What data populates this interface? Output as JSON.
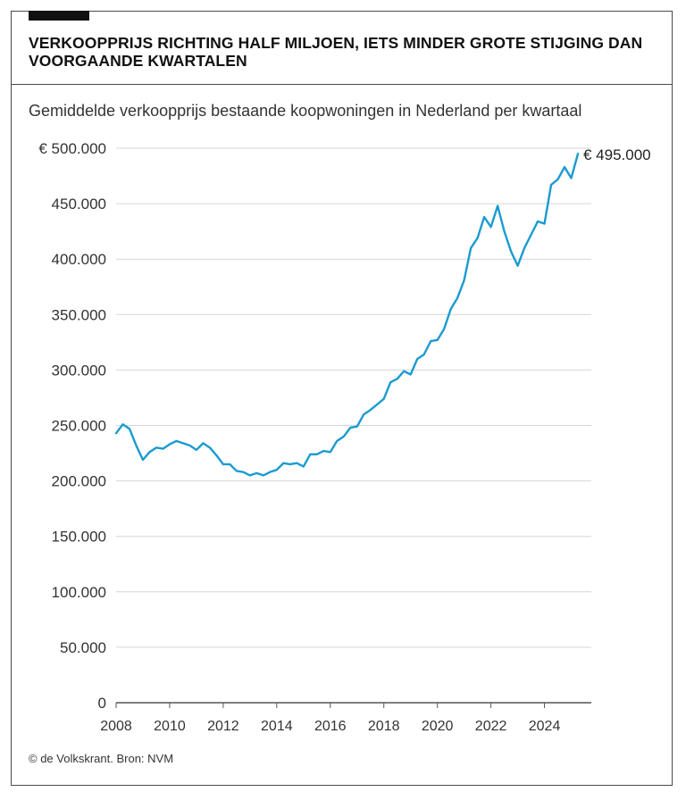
{
  "header": {
    "title": "VERKOOPPRIJS RICHTING HALF MILJOEN, IETS MINDER GROTE STIJGING DAN VOORGAANDE KWARTALEN"
  },
  "footer": {
    "credit": "© de Volkskrant. Bron: NVM"
  },
  "colors": {
    "line": "#1a9bd0",
    "grid": "#d6d6d6",
    "axis": "#555555"
  },
  "chart_data": {
    "type": "line",
    "title": "",
    "subtitle": "Gemiddelde verkoopprijs bestaande koopwoningen in Nederland per kwartaal",
    "xlabel": "",
    "ylabel": "",
    "xlim": [
      2008,
      2025.75
    ],
    "ylim": [
      0,
      500000
    ],
    "grid": true,
    "y_ticks": [
      {
        "value": 0,
        "label": "0"
      },
      {
        "value": 50000,
        "label": "50.000"
      },
      {
        "value": 100000,
        "label": "100.000"
      },
      {
        "value": 150000,
        "label": "150.000"
      },
      {
        "value": 200000,
        "label": "200.000"
      },
      {
        "value": 250000,
        "label": "250.000"
      },
      {
        "value": 300000,
        "label": "300.000"
      },
      {
        "value": 350000,
        "label": "350.000"
      },
      {
        "value": 400000,
        "label": "400.000"
      },
      {
        "value": 450000,
        "label": "450.000"
      },
      {
        "value": 500000,
        "label": "€ 500.000"
      }
    ],
    "x_ticks": [
      {
        "value": 2008,
        "label": "2008"
      },
      {
        "value": 2010,
        "label": "2010"
      },
      {
        "value": 2012,
        "label": "2012"
      },
      {
        "value": 2014,
        "label": "2014"
      },
      {
        "value": 2016,
        "label": "2016"
      },
      {
        "value": 2018,
        "label": "2018"
      },
      {
        "value": 2020,
        "label": "2020"
      },
      {
        "value": 2022,
        "label": "2022"
      },
      {
        "value": 2024,
        "label": "2024"
      }
    ],
    "end_label": "€ 495.000",
    "series": [
      {
        "x": [
          2008.0,
          2008.25,
          2008.5,
          2008.75,
          2009.0,
          2009.25,
          2009.5,
          2009.75,
          2010.0,
          2010.25,
          2010.5,
          2010.75,
          2011.0,
          2011.25,
          2011.5,
          2011.75,
          2012.0,
          2012.25,
          2012.5,
          2012.75,
          2013.0,
          2013.25,
          2013.5,
          2013.75,
          2014.0,
          2014.25,
          2014.5,
          2014.75,
          2015.0,
          2015.25,
          2015.5,
          2015.75,
          2016.0,
          2016.25,
          2016.5,
          2016.75,
          2017.0,
          2017.25,
          2017.5,
          2017.75,
          2018.0,
          2018.25,
          2018.5,
          2018.75,
          2019.0,
          2019.25,
          2019.5,
          2019.75,
          2020.0,
          2020.25,
          2020.5,
          2020.75,
          2021.0,
          2021.25,
          2021.5,
          2021.75,
          2022.0,
          2022.25,
          2022.5,
          2022.75,
          2023.0,
          2023.25,
          2023.5,
          2023.75,
          2024.0,
          2024.25,
          2024.5,
          2024.75,
          2025.0,
          2025.25
        ],
        "values": [
          243000,
          251000,
          247000,
          232000,
          219000,
          226000,
          230000,
          229000,
          233000,
          236000,
          234000,
          232000,
          228000,
          234000,
          230000,
          223000,
          215000,
          215000,
          209000,
          208000,
          205000,
          207000,
          205000,
          208000,
          210000,
          216000,
          215000,
          216000,
          213000,
          224000,
          224000,
          227000,
          226000,
          236000,
          240000,
          248000,
          249000,
          260000,
          264000,
          269000,
          274000,
          289000,
          292000,
          299000,
          296000,
          310000,
          314000,
          326000,
          327000,
          337000,
          355000,
          365000,
          381000,
          410000,
          419000,
          438000,
          429000,
          448000,
          425000,
          407000,
          394000,
          410000,
          422000,
          434000,
          432000,
          467000,
          472000,
          483000,
          473000,
          495000
        ]
      }
    ]
  }
}
